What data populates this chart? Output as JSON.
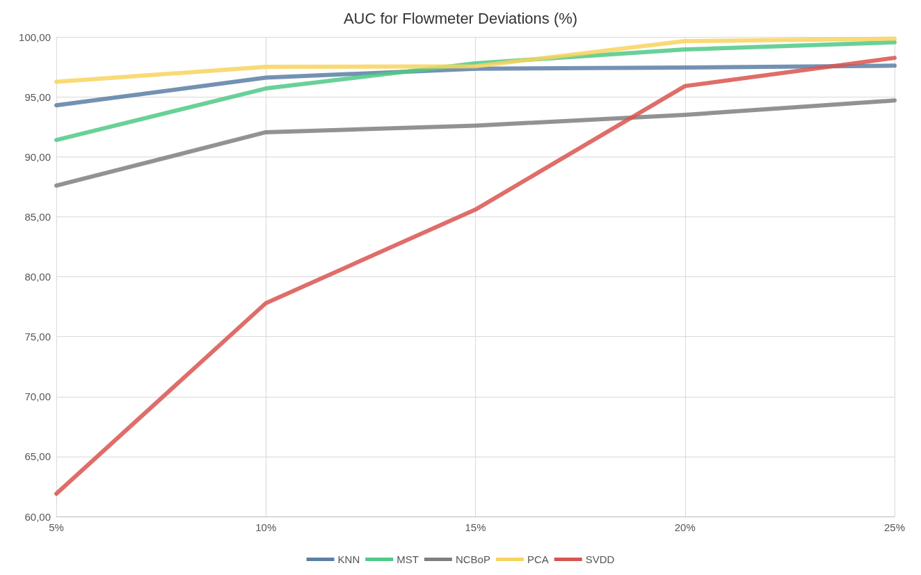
{
  "chart_data": {
    "type": "line",
    "title": "AUC for Flowmeter Deviations (%)",
    "categories": [
      "5%",
      "10%",
      "15%",
      "20%",
      "25%"
    ],
    "series": [
      {
        "name": "KNN",
        "color": "#5b7fa6",
        "values": [
          94.3,
          96.6,
          97.35,
          97.45,
          97.6
        ]
      },
      {
        "name": "MST",
        "color": "#4fc986",
        "values": [
          91.4,
          95.7,
          97.8,
          98.95,
          99.55
        ]
      },
      {
        "name": "NCBoP",
        "color": "#7f7f7f",
        "values": [
          87.6,
          92.05,
          92.6,
          93.5,
          94.7
        ]
      },
      {
        "name": "PCA",
        "color": "#f8d35e",
        "values": [
          96.25,
          97.5,
          97.55,
          99.65,
          99.85
        ]
      },
      {
        "name": "SVDD",
        "color": "#d9534f",
        "values": [
          61.9,
          77.8,
          85.6,
          95.9,
          98.25
        ]
      }
    ],
    "ylim": [
      60,
      100
    ],
    "yticks": [
      {
        "value": 60,
        "label": "60,00"
      },
      {
        "value": 65,
        "label": "65,00"
      },
      {
        "value": 70,
        "label": "70,00"
      },
      {
        "value": 75,
        "label": "75,00"
      },
      {
        "value": 80,
        "label": "80,00"
      },
      {
        "value": 85,
        "label": "85,00"
      },
      {
        "value": 90,
        "label": "90,00"
      },
      {
        "value": 95,
        "label": "95,00"
      },
      {
        "value": 100,
        "label": "100,00"
      }
    ],
    "grid": true,
    "legend": "bottom",
    "marker": "none",
    "line_style": "solid"
  }
}
